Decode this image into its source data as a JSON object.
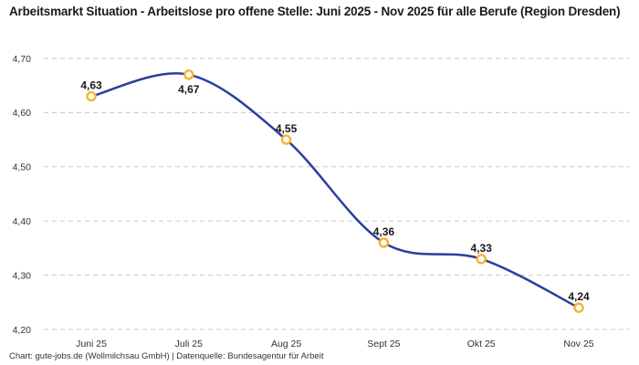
{
  "header": {
    "title": "Arbeitsmarkt Situation - Arbeitslose pro offene Stelle: Juni 2025 - Nov 2025 für alle Berufe (Region Dresden)"
  },
  "footer": {
    "attribution": "Chart: gute-jobs.de (Wollmilchsau GmbH) | Datenquelle: Bundesagentur für Arbeit"
  },
  "chart_data": {
    "type": "line",
    "title": "Arbeitsmarkt Situation - Arbeitslose pro offene Stelle: Juni 2025 - Nov 2025 für alle Berufe (Region Dresden)",
    "categories": [
      "Juni 25",
      "Juli 25",
      "Aug 25",
      "Sept 25",
      "Okt 25",
      "Nov 25"
    ],
    "series": [
      {
        "name": "Arbeitslose pro offene Stelle",
        "values": [
          4.63,
          4.67,
          4.55,
          4.36,
          4.33,
          4.24
        ]
      }
    ],
    "value_labels": [
      "4,63",
      "4,67",
      "4,55",
      "4,36",
      "4,33",
      "4,24"
    ],
    "label_positions": [
      "above",
      "below",
      "above",
      "above",
      "above",
      "above"
    ],
    "ylim": [
      4.2,
      4.7
    ],
    "ytick_values": [
      4.7,
      4.6,
      4.5,
      4.4,
      4.3,
      4.2
    ],
    "ytick_labels": [
      "4,70",
      "4,60",
      "4,50",
      "4,40",
      "4,30",
      "4,20"
    ],
    "xlabel": "",
    "ylabel": "",
    "grid": "horizontal-dashed",
    "legend": "none",
    "colors": {
      "line": "#2b3f9b",
      "marker_ring": "#f7b32b",
      "marker_fill": "#ffffff",
      "gridline": "#c9c9c9",
      "tick_text": "#333333",
      "label_text": "#191919"
    }
  }
}
